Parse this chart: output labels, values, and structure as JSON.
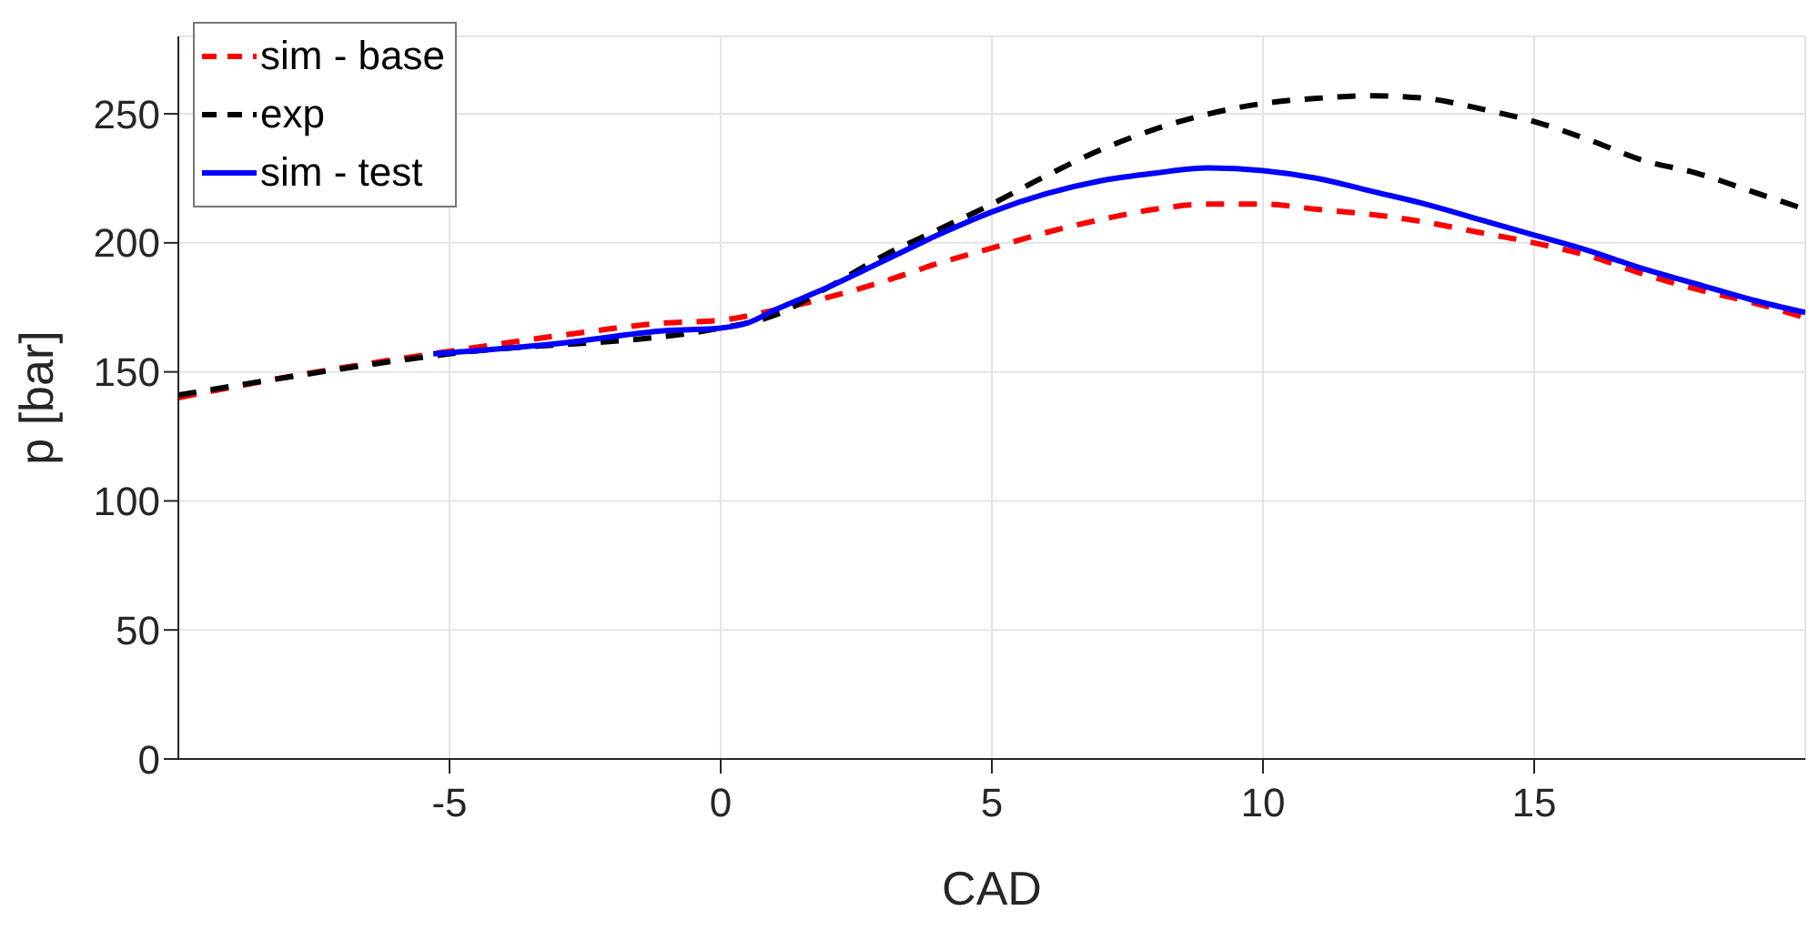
{
  "chart_data": {
    "type": "line",
    "xlabel": "CAD",
    "ylabel": "p [bar]",
    "xlim": [
      -10,
      20
    ],
    "ylim": [
      0,
      280
    ],
    "xticks": [
      -5,
      0,
      5,
      10,
      15
    ],
    "yticks": [
      0,
      50,
      100,
      150,
      200,
      250
    ],
    "grid": true,
    "legend": "top left",
    "series": [
      {
        "name": "sim - base",
        "color": "#ff0000",
        "line_style": "dashed",
        "x": [
          -10,
          -8,
          -5,
          -3,
          -1,
          0,
          1,
          2,
          3,
          4,
          5,
          6,
          7,
          8,
          9,
          10,
          11,
          12,
          13,
          14,
          15,
          16,
          17,
          18,
          19,
          20
        ],
        "values": [
          140,
          148,
          158,
          164,
          169,
          170,
          174,
          179,
          185,
          192,
          198,
          204,
          209,
          213,
          215,
          215,
          213,
          211,
          208,
          204,
          200,
          195,
          188,
          182,
          177,
          171
        ]
      },
      {
        "name": "exp",
        "color": "#000000",
        "line_style": "dashed",
        "x": [
          -10,
          -5,
          0,
          1,
          2,
          3,
          4,
          5,
          6,
          7,
          8,
          9,
          10,
          11,
          12,
          13,
          14,
          15,
          16,
          17,
          18,
          19,
          20
        ],
        "values": [
          141,
          157,
          167,
          172,
          183,
          195,
          205,
          215,
          226,
          236,
          244,
          250,
          254,
          256,
          257,
          256,
          252,
          247,
          240,
          232,
          227,
          220,
          213
        ]
      },
      {
        "name": "sim - test",
        "color": "#0000ff",
        "line_style": "solid",
        "x": [
          -5.3,
          -3,
          -1,
          0,
          0.5,
          1,
          2,
          3,
          4,
          5,
          6,
          7,
          8,
          9,
          10,
          11,
          12,
          13,
          14,
          15,
          16,
          17,
          18,
          19,
          20
        ],
        "values": [
          157,
          161,
          166,
          167,
          169,
          174,
          183,
          193,
          203,
          212,
          219,
          224,
          227,
          229,
          228,
          225,
          220,
          215,
          209,
          203,
          197,
          190,
          184,
          178,
          173
        ]
      }
    ]
  }
}
